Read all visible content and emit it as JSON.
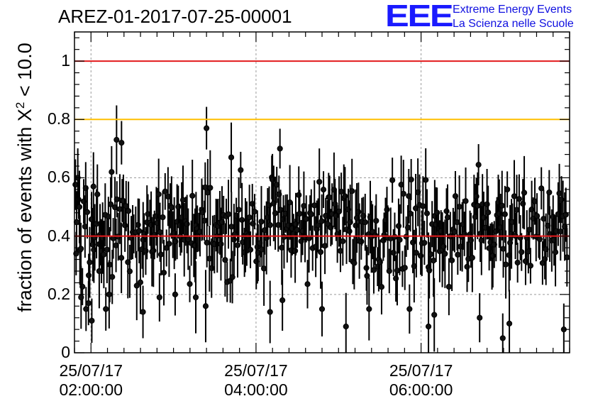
{
  "title": "AREZ-01-2017-07-25-00001",
  "logo": {
    "mark": "EEE",
    "line1": "Extreme Energy Events",
    "line2": "La Scienza nelle Scuole"
  },
  "colors": {
    "limit_red": "#e31a1c",
    "limit_orange": "#ffbf00",
    "points": "#000000",
    "grid": "#9a9a9a",
    "logo_blue": "#1a1aff"
  },
  "chart_data": {
    "type": "scatter",
    "ylabel_main": "fraction of events with X",
    "ylabel_sup": "2",
    "ylabel_tail": " < 10.0",
    "ylim": [
      0,
      1.1
    ],
    "yticks": [
      {
        "value": 0,
        "label": "0"
      },
      {
        "value": 0.2,
        "label": "0.2"
      },
      {
        "value": 0.4,
        "label": "0.4"
      },
      {
        "value": 0.6,
        "label": "0.6"
      },
      {
        "value": 0.8,
        "label": "0.8"
      },
      {
        "value": 1,
        "label": "1"
      }
    ],
    "xlim_hours": [
      1.8,
      7.8
    ],
    "xticks": [
      {
        "hour": 2,
        "date": "25/07/17",
        "time": "02:00:00"
      },
      {
        "hour": 4,
        "date": "25/07/17",
        "time": "04:00:00"
      },
      {
        "hour": 6,
        "date": "25/07/17",
        "time": "06:00:00"
      }
    ],
    "reference_lines": [
      {
        "value": 1.0,
        "color": "#e31a1c"
      },
      {
        "value": 0.8,
        "color": "#ffbf00"
      },
      {
        "value": 0.4,
        "color": "#e31a1c"
      }
    ],
    "grid": true,
    "highlighted_points": [
      {
        "x": 1.82,
        "y": 0.34
      },
      {
        "x": 1.84,
        "y": 0.6
      },
      {
        "x": 1.86,
        "y": 0.5
      },
      {
        "x": 1.88,
        "y": 0.19
      },
      {
        "x": 1.94,
        "y": 0.15
      },
      {
        "x": 1.97,
        "y": 0.17
      },
      {
        "x": 2.01,
        "y": 0.11
      },
      {
        "x": 2.03,
        "y": 0.57
      },
      {
        "x": 2.1,
        "y": 0.28
      },
      {
        "x": 2.18,
        "y": 0.15
      },
      {
        "x": 2.22,
        "y": 0.2
      },
      {
        "x": 2.25,
        "y": 0.62
      },
      {
        "x": 2.31,
        "y": 0.73
      },
      {
        "x": 2.37,
        "y": 0.72
      },
      {
        "x": 2.63,
        "y": 0.14
      },
      {
        "x": 2.83,
        "y": 0.19
      },
      {
        "x": 3.02,
        "y": 0.2
      },
      {
        "x": 3.27,
        "y": 0.19
      },
      {
        "x": 3.39,
        "y": 0.16
      },
      {
        "x": 3.4,
        "y": 0.77
      },
      {
        "x": 3.7,
        "y": 0.67
      },
      {
        "x": 4.29,
        "y": 0.7
      },
      {
        "x": 4.17,
        "y": 0.14
      },
      {
        "x": 4.32,
        "y": 0.18
      },
      {
        "x": 4.8,
        "y": 0.15
      },
      {
        "x": 5.09,
        "y": 0.09
      },
      {
        "x": 5.37,
        "y": 0.15
      },
      {
        "x": 5.86,
        "y": 0.15
      },
      {
        "x": 6.09,
        "y": 0.09
      },
      {
        "x": 6.16,
        "y": 0.13
      },
      {
        "x": 6.71,
        "y": 0.12
      },
      {
        "x": 6.99,
        "y": 0.05
      },
      {
        "x": 7.07,
        "y": 0.1
      },
      {
        "x": 7.73,
        "y": 0.08
      }
    ]
  }
}
